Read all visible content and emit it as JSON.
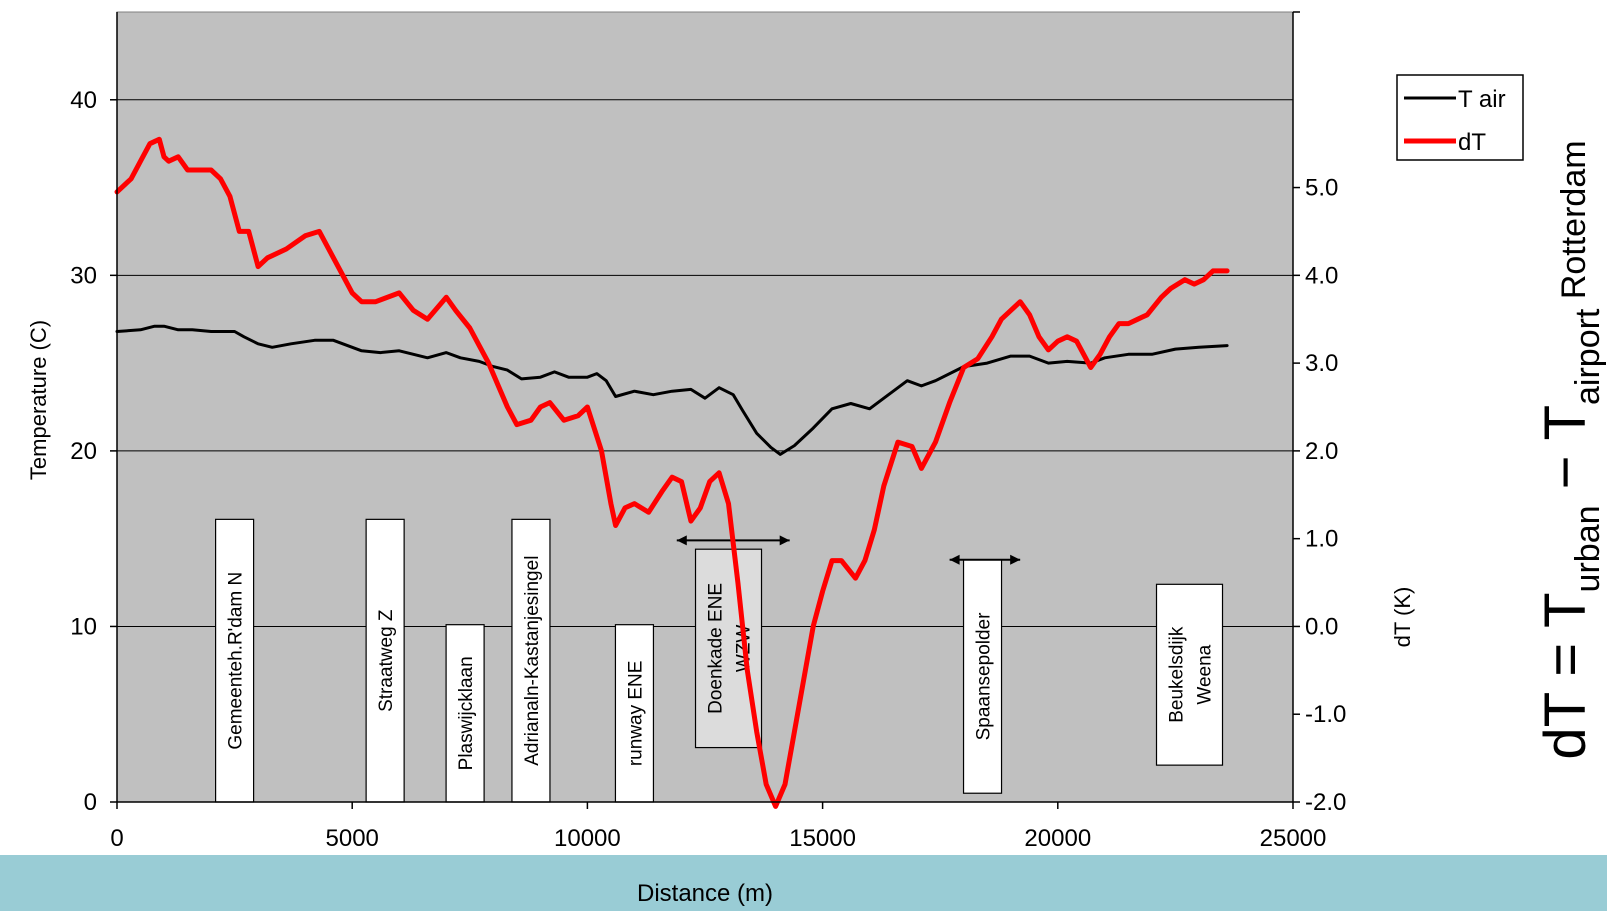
{
  "chart_data": {
    "type": "line",
    "xlabel": "Distance (m)",
    "ylabel": "Temperature (C)",
    "y2label": "dT (K)",
    "xlim": [
      0,
      25000
    ],
    "ylim": [
      0,
      45
    ],
    "y2lim": [
      -2.0,
      7.0
    ],
    "x_ticks": [
      "0",
      "5000",
      "10000",
      "15000",
      "20000",
      "25000"
    ],
    "y_ticks": [
      "0",
      "10",
      "20",
      "30",
      "40"
    ],
    "y2_ticks": [
      "-2.0",
      "-1.0",
      "0.0",
      "1.0",
      "2.0",
      "3.0",
      "4.0",
      "5.0"
    ],
    "grid": "horizontal",
    "legend_position": "top-right",
    "colors": {
      "T air": "#000000",
      "dT": "#ff0000",
      "plot_bg": "#c0c0c0",
      "band_bg": "#99ccd5"
    },
    "series": [
      {
        "name": "T air",
        "axis": "left",
        "color": "#000000",
        "x": [
          0,
          500,
          800,
          1000,
          1300,
          1600,
          2000,
          2500,
          2700,
          3000,
          3300,
          3700,
          4200,
          4600,
          4800,
          5200,
          5600,
          6000,
          6300,
          6600,
          7000,
          7300,
          7700,
          8000,
          8300,
          8600,
          9000,
          9300,
          9600,
          10000,
          10200,
          10400,
          10600,
          11000,
          11400,
          11800,
          12200,
          12500,
          12800,
          13100,
          13300,
          13600,
          13900,
          14100,
          14400,
          14800,
          15200,
          15600,
          16000,
          16400,
          16800,
          17100,
          17400,
          18000,
          18500,
          19000,
          19400,
          19800,
          20200,
          20700,
          21000,
          21500,
          22000,
          22500,
          23000,
          23600
        ],
        "y": [
          26.8,
          26.9,
          27.1,
          27.1,
          26.9,
          26.9,
          26.8,
          26.8,
          26.5,
          26.1,
          25.9,
          26.1,
          26.3,
          26.3,
          26.1,
          25.7,
          25.6,
          25.7,
          25.5,
          25.3,
          25.6,
          25.3,
          25.1,
          24.8,
          24.6,
          24.1,
          24.2,
          24.5,
          24.2,
          24.2,
          24.4,
          24.0,
          23.1,
          23.4,
          23.2,
          23.4,
          23.5,
          23.0,
          23.6,
          23.2,
          22.3,
          21.0,
          20.2,
          19.8,
          20.3,
          21.3,
          22.4,
          22.7,
          22.4,
          23.2,
          24.0,
          23.7,
          24.0,
          24.8,
          25.0,
          25.4,
          25.4,
          25.0,
          25.1,
          25.0,
          25.3,
          25.5,
          25.5,
          25.8,
          25.9,
          26.0
        ]
      },
      {
        "name": "dT",
        "axis": "right",
        "color": "#ff0000",
        "x": [
          0,
          300,
          500,
          700,
          900,
          1000,
          1100,
          1300,
          1500,
          1700,
          2000,
          2200,
          2400,
          2600,
          2800,
          3000,
          3200,
          3600,
          4000,
          4300,
          4600,
          4800,
          5000,
          5200,
          5500,
          6000,
          6300,
          6600,
          7000,
          7200,
          7500,
          7700,
          7900,
          8100,
          8300,
          8500,
          8800,
          9000,
          9200,
          9500,
          9800,
          10000,
          10300,
          10500,
          10600,
          10800,
          11000,
          11300,
          11600,
          11800,
          12000,
          12200,
          12400,
          12600,
          12800,
          13000,
          13200,
          13400,
          13600,
          13800,
          14000,
          14200,
          14400,
          14600,
          14800,
          15000,
          15200,
          15400,
          15700,
          15900,
          16100,
          16300,
          16600,
          16900,
          17100,
          17400,
          17700,
          18000,
          18300,
          18600,
          18800,
          19000,
          19200,
          19400,
          19600,
          19800,
          20000,
          20200,
          20400,
          20600,
          20700,
          20900,
          21100,
          21300,
          21500,
          21700,
          21900,
          22200,
          22400,
          22700,
          22900,
          23100,
          23300,
          23500,
          23600
        ],
        "y": [
          4.95,
          5.1,
          5.3,
          5.5,
          5.55,
          5.35,
          5.3,
          5.35,
          5.2,
          5.2,
          5.2,
          5.1,
          4.9,
          4.5,
          4.5,
          4.1,
          4.2,
          4.3,
          4.45,
          4.5,
          4.2,
          4.0,
          3.8,
          3.7,
          3.7,
          3.8,
          3.6,
          3.5,
          3.75,
          3.6,
          3.4,
          3.2,
          3.0,
          2.75,
          2.5,
          2.3,
          2.35,
          2.5,
          2.55,
          2.35,
          2.4,
          2.5,
          2.0,
          1.4,
          1.15,
          1.35,
          1.4,
          1.3,
          1.55,
          1.7,
          1.65,
          1.2,
          1.35,
          1.65,
          1.75,
          1.4,
          0.5,
          -0.5,
          -1.2,
          -1.8,
          -2.05,
          -1.8,
          -1.2,
          -0.6,
          0.0,
          0.4,
          0.75,
          0.75,
          0.55,
          0.75,
          1.1,
          1.6,
          2.1,
          2.05,
          1.8,
          2.1,
          2.55,
          2.95,
          3.05,
          3.3,
          3.5,
          3.6,
          3.7,
          3.55,
          3.3,
          3.15,
          3.25,
          3.3,
          3.25,
          3.05,
          2.95,
          3.1,
          3.3,
          3.45,
          3.45,
          3.5,
          3.55,
          3.75,
          3.85,
          3.95,
          3.9,
          3.95,
          4.05,
          4.05,
          4.05
        ]
      }
    ],
    "annotations": [
      {
        "x_center": 2500,
        "top": 16.1,
        "bottom": 0,
        "lines": [
          "Gemeenteh.R'dam N"
        ]
      },
      {
        "x_center": 5700,
        "top": 16.1,
        "bottom": 0,
        "lines": [
          "Straatweg Z"
        ]
      },
      {
        "x_center": 7400,
        "top": 10.1,
        "bottom": 0,
        "lines": [
          "Plaswijcklaan"
        ]
      },
      {
        "x_center": 8800,
        "top": 16.1,
        "bottom": 0,
        "lines": [
          "Adrianaln-Kastanjesingel"
        ]
      },
      {
        "x_center": 11000,
        "top": 10.1,
        "bottom": 0,
        "lines": [
          "runway ENE"
        ]
      },
      {
        "x_center": 13000,
        "top": 14.4,
        "bottom": 3.1,
        "lines": [
          "Doenkade  ENE",
          "WZW"
        ],
        "shaded": true
      },
      {
        "x_center": 18400,
        "top": 13.8,
        "bottom": 0.5,
        "lines": [
          "Spaansepolder"
        ]
      },
      {
        "x_center": 22800,
        "top": 12.4,
        "bottom": 2.1,
        "lines": [
          "Beukelsdijk",
          "Weena"
        ]
      }
    ],
    "arrows": [
      {
        "x1": 11900,
        "x2": 14300,
        "y": 14.9
      },
      {
        "x1": 17700,
        "x2": 19200,
        "y": 13.8
      }
    ]
  },
  "legend": {
    "items": [
      "T air",
      "dT"
    ]
  },
  "formula": {
    "left": "dT = T",
    "sub1": "urban",
    "minus": " − T",
    "sub2": "airport",
    "tail": "  Rotterdam"
  }
}
